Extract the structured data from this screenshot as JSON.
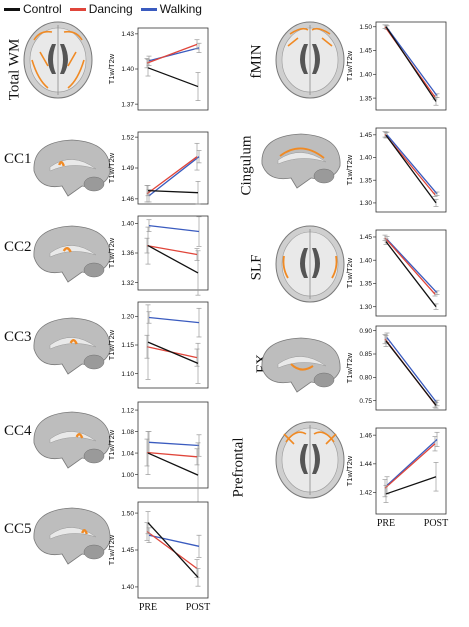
{
  "legend": [
    {
      "label": "Control",
      "color": "#111111"
    },
    {
      "label": "Dancing",
      "color": "#e0453a"
    },
    {
      "label": "Walking",
      "color": "#3a5bbf"
    }
  ],
  "brain_icon": "brain-mri-slice-icon",
  "chart_data": [
    {
      "type": "line",
      "region": "Total WM",
      "ylabel": "T1w/T2w",
      "categories": [
        "PRE",
        "POST"
      ],
      "yticks": [
        1.37,
        1.4,
        1.43
      ],
      "ylim": [
        1.365,
        1.435
      ],
      "series": [
        {
          "name": "Control",
          "values": [
            1.401,
            1.385
          ],
          "err": [
            0.007,
            0.012
          ]
        },
        {
          "name": "Dancing",
          "values": [
            1.405,
            1.421
          ],
          "err": [
            0.004,
            0.004
          ]
        },
        {
          "name": "Walking",
          "values": [
            1.407,
            1.418
          ],
          "err": [
            0.004,
            0.004
          ]
        }
      ]
    },
    {
      "type": "line",
      "region": "CC1",
      "ylabel": "T1w/T2w",
      "categories": [
        "PRE",
        "POST"
      ],
      "yticks": [
        1.46,
        1.49,
        1.52
      ],
      "ylim": [
        1.455,
        1.525
      ],
      "series": [
        {
          "name": "Control",
          "values": [
            1.468,
            1.466
          ],
          "err": [
            0.005,
            0.011
          ]
        },
        {
          "name": "Dancing",
          "values": [
            1.465,
            1.501
          ],
          "err": [
            0.008,
            0.013
          ]
        },
        {
          "name": "Walking",
          "values": [
            1.463,
            1.501
          ],
          "err": [
            0.006,
            0.006
          ]
        }
      ]
    },
    {
      "type": "line",
      "region": "CC2",
      "ylabel": "T1w/T2w",
      "categories": [
        "PRE",
        "POST"
      ],
      "yticks": [
        1.32,
        1.36,
        1.4
      ],
      "ylim": [
        1.31,
        1.41
      ],
      "series": [
        {
          "name": "Control",
          "values": [
            1.37,
            1.333
          ],
          "err": [
            0.025,
            0.03
          ]
        },
        {
          "name": "Dancing",
          "values": [
            1.37,
            1.358
          ],
          "err": [
            0.01,
            0.008
          ]
        },
        {
          "name": "Walking",
          "values": [
            1.397,
            1.389
          ],
          "err": [
            0.008,
            0.02
          ]
        }
      ]
    },
    {
      "type": "line",
      "region": "CC3",
      "ylabel": "T1w/T2w",
      "categories": [
        "PRE",
        "POST"
      ],
      "yticks": [
        1.1,
        1.15,
        1.2
      ],
      "ylim": [
        1.075,
        1.225
      ],
      "series": [
        {
          "name": "Control",
          "values": [
            1.155,
            1.118
          ],
          "err": [
            0.065,
            0.035
          ]
        },
        {
          "name": "Dancing",
          "values": [
            1.147,
            1.128
          ],
          "err": [
            0.02,
            0.015
          ]
        },
        {
          "name": "Walking",
          "values": [
            1.198,
            1.189
          ],
          "err": [
            0.01,
            0.025
          ]
        }
      ]
    },
    {
      "type": "line",
      "region": "CC4",
      "ylabel": "T1w/T2w",
      "categories": [
        "PRE",
        "POST"
      ],
      "yticks": [
        1.0,
        1.04,
        1.08,
        1.12
      ],
      "ylim": [
        0.975,
        1.135
      ],
      "series": [
        {
          "name": "Control",
          "values": [
            1.04,
            0.999
          ],
          "err": [
            0.04,
            0.06
          ]
        },
        {
          "name": "Dancing",
          "values": [
            1.041,
            1.033
          ],
          "err": [
            0.025,
            0.015
          ]
        },
        {
          "name": "Walking",
          "values": [
            1.06,
            1.054
          ],
          "err": [
            0.02,
            0.02
          ]
        }
      ]
    },
    {
      "type": "line",
      "region": "CC5",
      "ylabel": "T1w/T2w",
      "categories": [
        "PRE",
        "POST"
      ],
      "yticks": [
        1.4,
        1.45,
        1.5
      ],
      "ylim": [
        1.385,
        1.515
      ],
      "series": [
        {
          "name": "Control",
          "values": [
            1.487,
            1.413
          ],
          "err": [
            0.015,
            0.012
          ]
        },
        {
          "name": "Dancing",
          "values": [
            1.475,
            1.425
          ],
          "err": [
            0.012,
            0.012
          ]
        },
        {
          "name": "Walking",
          "values": [
            1.47,
            1.455
          ],
          "err": [
            0.01,
            0.015
          ]
        }
      ]
    },
    {
      "type": "line",
      "region": "fMIN",
      "ylabel": "T1w/T2w",
      "categories": [
        "PRE",
        "POST"
      ],
      "yticks": [
        1.35,
        1.4,
        1.45,
        1.5
      ],
      "ylim": [
        1.325,
        1.51
      ],
      "series": [
        {
          "name": "Control",
          "values": [
            1.5,
            1.343
          ],
          "err": [
            0.004,
            0.008
          ]
        },
        {
          "name": "Dancing",
          "values": [
            1.5,
            1.352
          ],
          "err": [
            0.004,
            0.004
          ]
        },
        {
          "name": "Walking",
          "values": [
            1.498,
            1.355
          ],
          "err": [
            0.004,
            0.004
          ]
        }
      ]
    },
    {
      "type": "line",
      "region": "Cingulum",
      "ylabel": "T1w/T2w",
      "categories": [
        "PRE",
        "POST"
      ],
      "yticks": [
        1.3,
        1.35,
        1.4,
        1.45
      ],
      "ylim": [
        1.28,
        1.465
      ],
      "series": [
        {
          "name": "Control",
          "values": [
            1.449,
            1.3
          ],
          "err": [
            0.006,
            0.008
          ]
        },
        {
          "name": "Dancing",
          "values": [
            1.451,
            1.318
          ],
          "err": [
            0.006,
            0.004
          ]
        },
        {
          "name": "Walking",
          "values": [
            1.45,
            1.32
          ],
          "err": [
            0.006,
            0.004
          ]
        }
      ]
    },
    {
      "type": "line",
      "region": "SLF",
      "ylabel": "T1w/T2w",
      "categories": [
        "PRE",
        "POST"
      ],
      "yticks": [
        1.3,
        1.35,
        1.4,
        1.45
      ],
      "ylim": [
        1.28,
        1.465
      ],
      "series": [
        {
          "name": "Control",
          "values": [
            1.44,
            1.3
          ],
          "err": [
            0.006,
            0.006
          ]
        },
        {
          "name": "Dancing",
          "values": [
            1.448,
            1.327
          ],
          "err": [
            0.006,
            0.004
          ]
        },
        {
          "name": "Walking",
          "values": [
            1.445,
            1.33
          ],
          "err": [
            0.006,
            0.004
          ]
        }
      ]
    },
    {
      "type": "line",
      "region": "FX",
      "ylabel": "T1w/T2w",
      "categories": [
        "PRE",
        "POST"
      ],
      "yticks": [
        0.75,
        0.8,
        0.85,
        0.9
      ],
      "ylim": [
        0.73,
        0.91
      ],
      "series": [
        {
          "name": "Control",
          "values": [
            0.878,
            0.74
          ],
          "err": [
            0.012,
            0.006
          ]
        },
        {
          "name": "Dancing",
          "values": [
            0.882,
            0.742
          ],
          "err": [
            0.01,
            0.006
          ]
        },
        {
          "name": "Walking",
          "values": [
            0.885,
            0.745
          ],
          "err": [
            0.01,
            0.006
          ]
        }
      ]
    },
    {
      "type": "line",
      "region": "Prefrontal",
      "ylabel": "T1w/T2w",
      "categories": [
        "PRE",
        "POST"
      ],
      "yticks": [
        1.42,
        1.44,
        1.46
      ],
      "ylim": [
        1.405,
        1.465
      ],
      "series": [
        {
          "name": "Control",
          "values": [
            1.419,
            1.431
          ],
          "err": [
            0.006,
            0.01
          ]
        },
        {
          "name": "Dancing",
          "values": [
            1.423,
            1.454
          ],
          "err": [
            0.006,
            0.005
          ]
        },
        {
          "name": "Walking",
          "values": [
            1.425,
            1.457
          ],
          "err": [
            0.006,
            0.005
          ]
        }
      ]
    }
  ]
}
